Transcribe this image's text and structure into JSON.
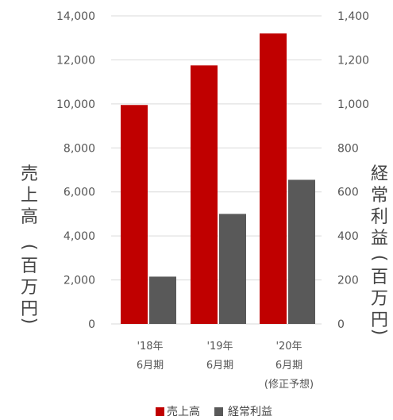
{
  "chart_data": {
    "type": "bar",
    "categories": [
      {
        "lines": [
          "'18年",
          "6月期"
        ]
      },
      {
        "lines": [
          "'19年",
          "6月期"
        ]
      },
      {
        "lines": [
          "'20年",
          "6月期",
          "(修正予想)"
        ]
      }
    ],
    "series": [
      {
        "name": "売上高",
        "axis": "left",
        "values": [
          9950,
          11750,
          13200
        ],
        "color": "#c00000"
      },
      {
        "name": "経常利益",
        "axis": "right",
        "values": [
          215,
          500,
          655
        ],
        "color": "#595959"
      }
    ],
    "y_left": {
      "label": "売上高",
      "unit": "百万円",
      "ylim": [
        0,
        14000
      ],
      "ticks": [
        "0",
        "2,000",
        "4,000",
        "6,000",
        "8,000",
        "10,000",
        "12,000",
        "14,000"
      ]
    },
    "y_right": {
      "label": "経常利益",
      "unit": "百万円",
      "ylim": [
        0,
        1400
      ],
      "ticks": [
        "0",
        "200",
        "400",
        "600",
        "800",
        "1,000",
        "1,200",
        "1,400"
      ]
    },
    "grid": true,
    "legend_position": "bottom"
  }
}
